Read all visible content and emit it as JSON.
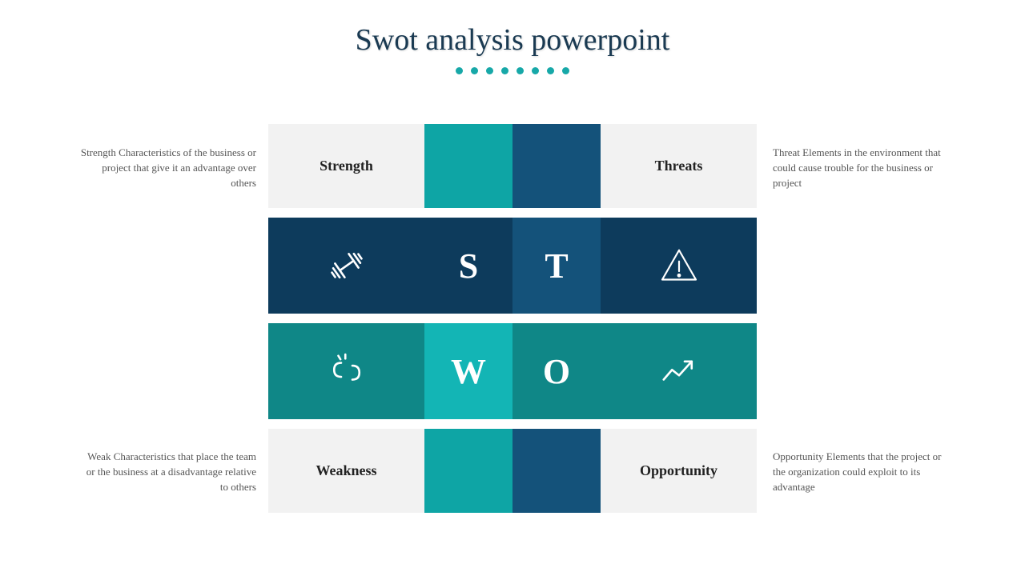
{
  "title": "Swot analysis powerpoint",
  "dots": {
    "count": 8,
    "color": "#17a8a8"
  },
  "colors": {
    "bg_light": "#f2f2f2",
    "teal_mid": "#0ea5a5",
    "teal_light": "#13b5b5",
    "teal_dark": "#0f8787",
    "teal_darker": "#0d7878",
    "navy_dark": "#0d3b5c",
    "navy_mid": "#14527a",
    "navy_light": "#1a5f8a",
    "white": "#ffffff",
    "text_dark": "#222222",
    "desc_text": "#555555"
  },
  "layout": {
    "container_w": 610,
    "container_h": 500,
    "col1_w": 195,
    "col2_w": 110,
    "col3_w": 110,
    "col4_w": 195,
    "row_label_h": 105,
    "row_icon_h": 120,
    "row_gap": 12
  },
  "quadrants": {
    "strength": {
      "label": "Strength",
      "letter": "S",
      "desc": "Strength Characteristics of the business or project that give it an advantage over others"
    },
    "threats": {
      "label": "Threats",
      "letter": "T",
      "desc": "Threat Elements in the environment that could cause trouble for the business or project"
    },
    "weakness": {
      "label": "Weakness",
      "letter": "W",
      "desc": "Weak Characteristics that place the team or the business at a disadvantage relative to others"
    },
    "opportunity": {
      "label": "Opportunity",
      "letter": "O",
      "desc": "Opportunity Elements that the project or the organization could exploit to its advantage"
    }
  }
}
